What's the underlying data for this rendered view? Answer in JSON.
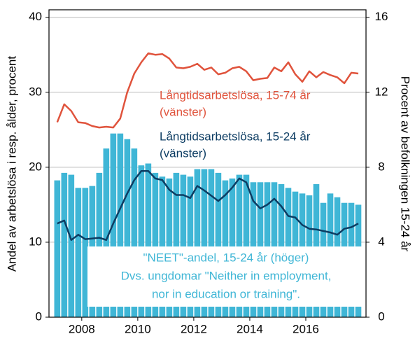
{
  "chart_data": {
    "type": "bar-line",
    "ylabel": "Andel av arbetslösa i resp. ålder, procent",
    "y2label": "Procent av befolkningen 15-24 år",
    "x": [
      2007.125,
      2007.375,
      2007.625,
      2007.875,
      2008.125,
      2008.375,
      2008.625,
      2008.875,
      2009.125,
      2009.375,
      2009.625,
      2009.875,
      2010.125,
      2010.375,
      2010.625,
      2010.875,
      2011.125,
      2011.375,
      2011.625,
      2011.875,
      2012.125,
      2012.375,
      2012.625,
      2012.875,
      2013.125,
      2013.375,
      2013.625,
      2013.875,
      2014.125,
      2014.375,
      2014.625,
      2014.875,
      2015.125,
      2015.375,
      2015.625,
      2015.875,
      2016.125,
      2016.375,
      2016.625,
      2016.875,
      2017.125,
      2017.375,
      2017.625,
      2017.875
    ],
    "xlim": [
      2006.83,
      2018.15
    ],
    "xticks": [
      2008,
      2010,
      2012,
      2014,
      2016
    ],
    "ylim": [
      0,
      41
    ],
    "yticks": [
      0,
      10,
      20,
      30,
      40
    ],
    "y2lim": [
      0,
      16.4
    ],
    "y2ticks": [
      0,
      4,
      8,
      12,
      16
    ],
    "grid": true,
    "series": [
      {
        "name": "\"NEET\"-andel, 15-24 år (höger)",
        "kind": "bar",
        "axis": "y2",
        "color": "#3fb6d6",
        "values": [
          7.3,
          7.7,
          7.6,
          6.9,
          6.9,
          7.0,
          7.7,
          9.0,
          9.8,
          9.8,
          9.5,
          9.0,
          8.1,
          8.2,
          7.7,
          7.5,
          7.4,
          7.7,
          7.6,
          7.5,
          7.9,
          7.9,
          7.9,
          7.7,
          7.3,
          7.4,
          7.6,
          7.6,
          7.2,
          7.2,
          7.2,
          7.2,
          7.1,
          6.9,
          6.7,
          6.6,
          6.5,
          7.1,
          6.1,
          6.6,
          6.4,
          6.1,
          6.1,
          6.0
        ]
      },
      {
        "name": "Långtidsarbetslösa, 15-74 år",
        "kind": "line",
        "color": "#e0533c",
        "values": [
          26.0,
          28.4,
          27.5,
          26.0,
          25.9,
          25.5,
          25.3,
          25.4,
          25.3,
          26.5,
          30.0,
          32.5,
          34.0,
          35.2,
          35.0,
          35.1,
          34.5,
          33.3,
          33.2,
          33.4,
          33.8,
          33.0,
          33.3,
          32.4,
          32.6,
          33.2,
          33.4,
          32.8,
          31.6,
          31.8,
          31.9,
          33.3,
          32.8,
          34.0,
          32.4,
          31.4,
          32.8,
          32.0,
          32.7,
          32.3,
          32.0,
          31.2,
          32.6,
          32.5
        ]
      },
      {
        "name": "Långtidsarbetslösa, 15-24 år",
        "kind": "line",
        "color": "#0d3d63",
        "values": [
          12.5,
          12.9,
          10.3,
          11.0,
          10.4,
          10.5,
          10.6,
          10.3,
          12.5,
          14.5,
          16.5,
          18.3,
          19.5,
          19.5,
          18.5,
          18.3,
          17.0,
          16.3,
          16.3,
          15.9,
          17.5,
          16.9,
          16.2,
          15.5,
          16.3,
          17.3,
          18.5,
          18.0,
          15.5,
          14.5,
          15.0,
          15.8,
          14.8,
          13.5,
          13.3,
          12.3,
          11.8,
          11.7,
          11.5,
          11.3,
          11.0,
          11.8,
          12.0,
          12.5
        ]
      }
    ],
    "annotations": [
      {
        "lines": [
          "Långtidsarbetslösa, 15-74 år",
          "(vänster)"
        ],
        "color": "#e0533c"
      },
      {
        "lines": [
          "Långtidsarbetslösa, 15-24 år",
          "(vänster)"
        ],
        "color": "#0d3d63"
      },
      {
        "lines": [
          "\"NEET\"-andel, 15-24 år (höger)",
          "Dvs. ungdomar \"Neither in employment,",
          "nor in education or training\"."
        ],
        "color": "#3fb6d6"
      }
    ]
  }
}
